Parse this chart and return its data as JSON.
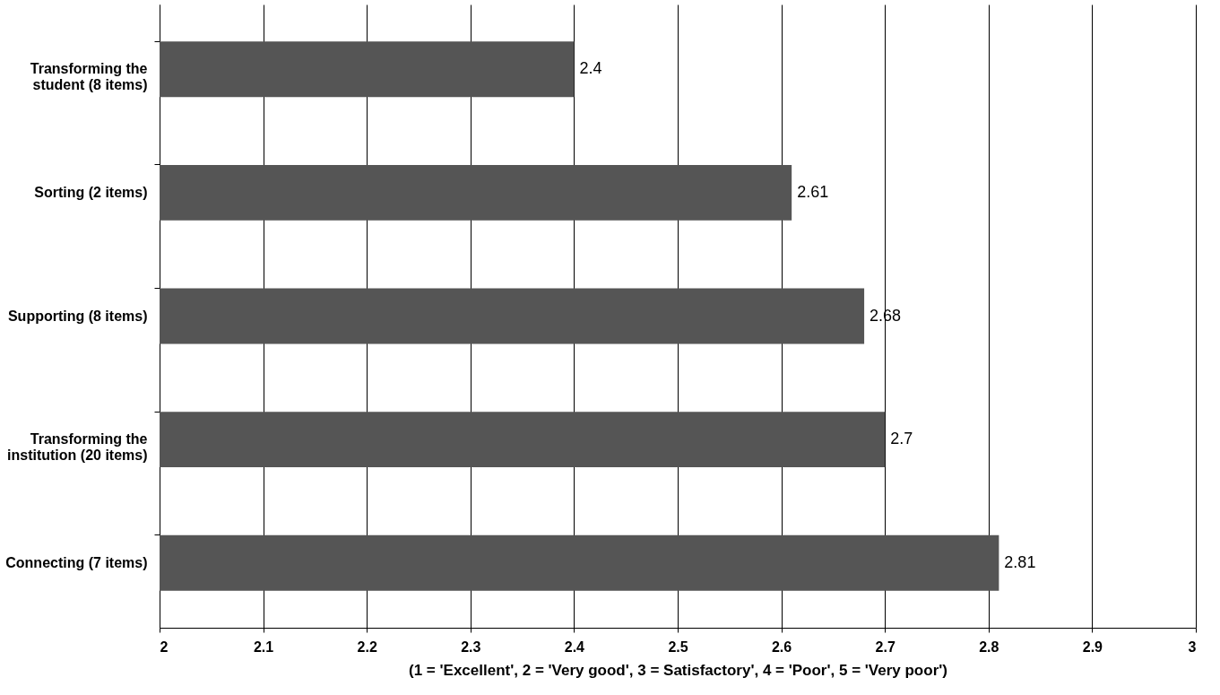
{
  "chart_data": {
    "type": "bar",
    "orientation": "horizontal",
    "categories": [
      "Transforming the student (8 items)",
      "Sorting (2 items)",
      "Supporting (8 items)",
      "Transforming the institution (20 items)",
      "Connecting (7 items)"
    ],
    "values": [
      2.4,
      2.61,
      2.68,
      2.7,
      2.81
    ],
    "color": "#555555",
    "xlim": [
      2,
      3
    ],
    "xticks": [
      2,
      2.1,
      2.2,
      2.3,
      2.4,
      2.5,
      2.6,
      2.7,
      2.8,
      2.9,
      3
    ],
    "xlabel": "(1 = 'Excellent', 2 = 'Very good', 3 = Satisfactory', 4 = 'Poor', 5 = 'Very poor')",
    "grid": "x",
    "data_labels": true
  }
}
